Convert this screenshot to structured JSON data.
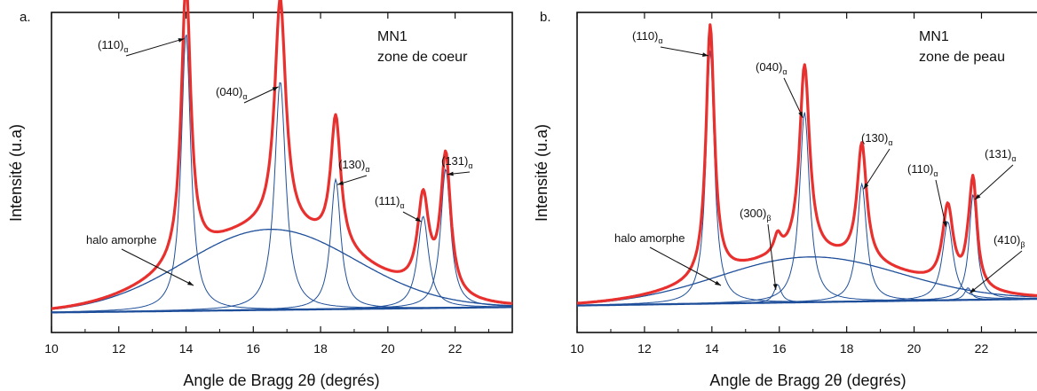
{
  "chart_data": [
    {
      "panel": "a.",
      "type": "line",
      "xlabel": "Angle de Bragg 2θ (degrés)",
      "ylabel": "Intensité (u.a)",
      "xlim": [
        10,
        23.7
      ],
      "xticks": [
        10,
        12,
        14,
        16,
        18,
        20,
        22
      ],
      "info": [
        "MN1",
        "zone de coeur"
      ],
      "total_color": "#e8312e",
      "component_color": "#1f4f9a",
      "peaks": [
        {
          "label": "(110)",
          "sub": "α",
          "center": 14.0,
          "height": 0.62,
          "width": 0.17
        },
        {
          "label": "(040)",
          "sub": "α",
          "center": 16.8,
          "height": 0.51,
          "width": 0.2
        },
        {
          "label": "(130)",
          "sub": "α",
          "center": 18.45,
          "height": 0.29,
          "width": 0.18
        },
        {
          "label": "(111)",
          "sub": "α",
          "center": 21.05,
          "height": 0.205,
          "width": 0.2
        },
        {
          "label": "(131)",
          "sub": "α",
          "center": 21.72,
          "height": 0.31,
          "width": 0.18
        }
      ],
      "halo": {
        "label": "halo amorphe",
        "center": 16.5,
        "height": 0.18,
        "sigma": 3.6
      },
      "baseline": [
        0.013,
        0.025
      ]
    },
    {
      "panel": "b.",
      "type": "line",
      "xlabel": "Angle de Bragg 2θ (degrés)",
      "ylabel": "Intensité (u.a)",
      "xlim": [
        10,
        23.7
      ],
      "xticks": [
        10,
        12,
        14,
        16,
        18,
        20,
        22
      ],
      "info": [
        "MN1",
        "zone de peau"
      ],
      "total_color": "#e8312e",
      "component_color": "#1f4f9a",
      "peaks": [
        {
          "label": "(110)",
          "sub": "α",
          "center": 13.95,
          "height": 0.84,
          "width": 0.15
        },
        {
          "label": "(300)",
          "sub": "β",
          "center": 15.95,
          "height": 0.06,
          "width": 0.13
        },
        {
          "label": "(040)",
          "sub": "α",
          "center": 16.75,
          "height": 0.63,
          "width": 0.18
        },
        {
          "label": "(130)",
          "sub": "α",
          "center": 18.45,
          "height": 0.39,
          "width": 0.17
        },
        {
          "label": "(110)",
          "sub": "α",
          "center": 21.0,
          "height": 0.26,
          "width": 0.19
        },
        {
          "label": "(131)",
          "sub": "α",
          "center": 21.75,
          "height": 0.35,
          "width": 0.14
        },
        {
          "label": "(410)",
          "sub": "β",
          "center": 21.6,
          "height": 0.04,
          "width": 0.12
        }
      ],
      "halo": {
        "label": "halo amorphe",
        "center": 16.9,
        "height": 0.15,
        "sigma": 3.8
      },
      "baseline": [
        0.013,
        0.035
      ]
    }
  ]
}
